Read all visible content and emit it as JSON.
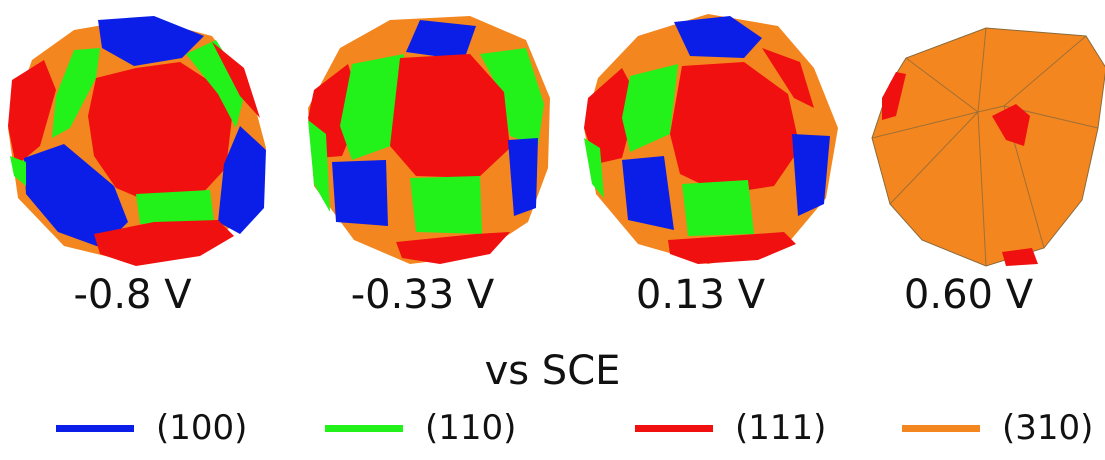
{
  "panels": [
    {
      "id": "p1",
      "potential": "-0.8 V"
    },
    {
      "id": "p2",
      "potential": "-0.33 V"
    },
    {
      "id": "p3",
      "potential": "0.13 V"
    },
    {
      "id": "p4",
      "potential": "0.60 V"
    }
  ],
  "reference": "vs SCE",
  "legend": [
    {
      "label": "(100)",
      "color": "#0b1ee8"
    },
    {
      "label": "(110)",
      "color": "#22f21a"
    },
    {
      "label": "(111)",
      "color": "#f01010"
    },
    {
      "label": "(310)",
      "color": "#f4861f"
    }
  ]
}
